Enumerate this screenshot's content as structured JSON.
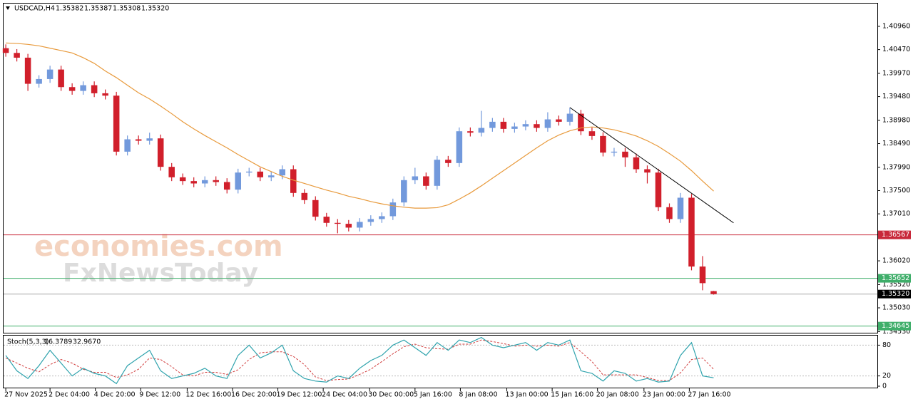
{
  "chart_data": {
    "type": "candlestick",
    "title": "USDCAD,H4",
    "quote": {
      "values": [
        1.35382,
        1.35387,
        1.35308,
        1.3532
      ],
      "value_labels": [
        "1.35382",
        "1.35387",
        "1.35308",
        "1.35320"
      ]
    },
    "xlim": [
      -0.2,
      78.8
    ],
    "x_ticks": [
      {
        "value": 0,
        "label": "27 Nov 2025"
      },
      {
        "value": 4,
        "label": "2 Dec 04:00"
      },
      {
        "value": 8.1,
        "label": "4 Dec 20:00"
      },
      {
        "value": 12.2,
        "label": "9 Dec 12:00"
      },
      {
        "value": 16.4,
        "label": "12 Dec 16:00"
      },
      {
        "value": 20.5,
        "label": "16 Dec 20:00"
      },
      {
        "value": 24.6,
        "label": "19 Dec 12:00"
      },
      {
        "value": 28.7,
        "label": "24 Dec 04:00"
      },
      {
        "value": 32.9,
        "label": "30 Dec 00:00"
      },
      {
        "value": 37,
        "label": "5 Jan 16:00"
      },
      {
        "value": 41.1,
        "label": "8 Jan 08:00"
      },
      {
        "value": 45.3,
        "label": "13 Jan 00:00"
      },
      {
        "value": 49.4,
        "label": "15 Jan 16:00"
      },
      {
        "value": 53.5,
        "label": "20 Jan 08:00"
      },
      {
        "value": 57.7,
        "label": "23 Jan 00:00"
      },
      {
        "value": 61.8,
        "label": "27 Jan 16:00"
      }
    ],
    "open": [
      1.405,
      1.404,
      1.403,
      1.3975,
      1.3985,
      1.4005,
      1.3968,
      1.396,
      1.3972,
      1.3955,
      1.395,
      1.3832,
      1.3858,
      1.3855,
      1.386,
      1.38,
      1.3778,
      1.377,
      1.3765,
      1.3772,
      1.3768,
      1.3752,
      1.3788,
      1.379,
      1.3778,
      1.3782,
      1.3795,
      1.3745,
      1.373,
      1.3695,
      1.3682,
      1.368,
      1.3672,
      1.3684,
      1.369,
      1.3696,
      1.3725,
      1.3772,
      1.378,
      1.376,
      1.3815,
      1.3808,
      1.3875,
      1.3872,
      1.3882,
      1.3895,
      1.388,
      1.3885,
      1.389,
      1.3882,
      1.39,
      1.3895,
      1.3912,
      1.3875,
      1.3865,
      1.383,
      1.3832,
      1.382,
      1.3795,
      1.3788,
      1.3715,
      1.369,
      1.3735,
      1.359,
      1.35382
    ],
    "high": [
      1.4058,
      1.4048,
      1.4038,
      1.3993,
      1.4013,
      1.4013,
      1.3976,
      1.398,
      1.398,
      1.3963,
      1.3958,
      1.3866,
      1.3866,
      1.3872,
      1.3868,
      1.3808,
      1.3786,
      1.3778,
      1.378,
      1.378,
      1.3776,
      1.3796,
      1.3798,
      1.3798,
      1.379,
      1.3803,
      1.3803,
      1.3753,
      1.3738,
      1.3703,
      1.369,
      1.3688,
      1.3692,
      1.3698,
      1.3704,
      1.3733,
      1.378,
      1.3798,
      1.3788,
      1.3823,
      1.3823,
      1.3883,
      1.3883,
      1.3918,
      1.3903,
      1.3903,
      1.3893,
      1.3898,
      1.3898,
      1.3915,
      1.3908,
      1.3925,
      1.392,
      1.3883,
      1.3873,
      1.384,
      1.384,
      1.3828,
      1.3803,
      1.3796,
      1.3723,
      1.3745,
      1.3743,
      1.3612,
      1.35387
    ],
    "low": [
      1.4032,
      1.4022,
      1.396,
      1.3967,
      1.3977,
      1.396,
      1.3952,
      1.3952,
      1.3947,
      1.3942,
      1.3824,
      1.3824,
      1.3847,
      1.3847,
      1.3792,
      1.377,
      1.3762,
      1.3757,
      1.3757,
      1.376,
      1.3744,
      1.3744,
      1.378,
      1.377,
      1.377,
      1.3774,
      1.3737,
      1.3722,
      1.3687,
      1.3674,
      1.366,
      1.3664,
      1.3664,
      1.3676,
      1.3682,
      1.3688,
      1.3717,
      1.3764,
      1.3752,
      1.3752,
      1.38,
      1.38,
      1.3864,
      1.3864,
      1.3874,
      1.3872,
      1.3872,
      1.3877,
      1.3874,
      1.3874,
      1.3887,
      1.3887,
      1.3867,
      1.3857,
      1.3822,
      1.3822,
      1.38,
      1.3787,
      1.3765,
      1.3707,
      1.3682,
      1.3682,
      1.3582,
      1.354,
      1.35308
    ],
    "close": [
      1.404,
      1.403,
      1.3975,
      1.3985,
      1.4005,
      1.3968,
      1.396,
      1.3972,
      1.3955,
      1.395,
      1.3832,
      1.3858,
      1.3855,
      1.386,
      1.38,
      1.3778,
      1.377,
      1.3765,
      1.3772,
      1.3768,
      1.3752,
      1.3788,
      1.379,
      1.3778,
      1.3782,
      1.3795,
      1.3745,
      1.373,
      1.3695,
      1.3682,
      1.368,
      1.3672,
      1.3684,
      1.369,
      1.3696,
      1.3725,
      1.3772,
      1.378,
      1.376,
      1.3815,
      1.3808,
      1.3875,
      1.3872,
      1.3882,
      1.3895,
      1.388,
      1.3885,
      1.389,
      1.3882,
      1.39,
      1.3895,
      1.3912,
      1.3875,
      1.3865,
      1.383,
      1.3832,
      1.382,
      1.3795,
      1.3788,
      1.3715,
      1.369,
      1.3735,
      1.359,
      1.3555,
      1.3532
    ],
    "colors": {
      "up": "#7299dc",
      "down": "#d11f2b"
    },
    "ylim": [
      1.3449,
      1.4144
    ],
    "yticks": [
      {
        "value": 1.4096,
        "label": "1.40960"
      },
      {
        "value": 1.4047,
        "label": "1.40470"
      },
      {
        "value": 1.3997,
        "label": "1.39970"
      },
      {
        "value": 1.3948,
        "label": "1.39480"
      },
      {
        "value": 1.3898,
        "label": "1.38980"
      },
      {
        "value": 1.3849,
        "label": "1.38490"
      },
      {
        "value": 1.3799,
        "label": "1.37990"
      },
      {
        "value": 1.375,
        "label": "1.37500"
      },
      {
        "value": 1.3701,
        "label": "1.37010"
      },
      {
        "value": 1.3652,
        "label": "1.36520"
      },
      {
        "value": 1.3602,
        "label": "1.36020"
      },
      {
        "value": 1.3552,
        "label": "1.35520"
      },
      {
        "value": 1.3503,
        "label": "1.35030"
      },
      {
        "value": 1.3453,
        "label": "1.34530"
      }
    ],
    "ma": {
      "color": "#e89a3c",
      "values": [
        1.4061,
        1.406,
        1.4058,
        1.4055,
        1.405,
        1.4045,
        1.404,
        1.403,
        1.4018,
        1.4002,
        1.3988,
        1.3972,
        1.3956,
        1.3943,
        1.3928,
        1.3912,
        1.3895,
        1.388,
        1.3866,
        1.3853,
        1.384,
        1.3826,
        1.3813,
        1.38,
        1.379,
        1.378,
        1.3772,
        1.3765,
        1.3758,
        1.3751,
        1.3745,
        1.3738,
        1.3733,
        1.3727,
        1.3722,
        1.3718,
        1.3715,
        1.3713,
        1.3713,
        1.3714,
        1.372,
        1.3732,
        1.3745,
        1.376,
        1.3776,
        1.3792,
        1.3808,
        1.3824,
        1.384,
        1.3855,
        1.3867,
        1.3876,
        1.3882,
        1.3884,
        1.3882,
        1.3878,
        1.3872,
        1.3865,
        1.3855,
        1.3843,
        1.3828,
        1.3812,
        1.3792,
        1.377,
        1.3749
      ]
    },
    "levels": [
      {
        "value": 1.36567,
        "label": "1.36567",
        "color": "#c8283a"
      },
      {
        "value": 1.35652,
        "label": "1.35652",
        "color": "#3fae6a"
      },
      {
        "value": 1.3532,
        "label": "1.35320",
        "color": "#000000"
      },
      {
        "value": 1.34645,
        "label": "1.34645",
        "color": "#3fae6a"
      }
    ],
    "trendline": {
      "color": "#000000",
      "x": [
        51,
        65.8
      ],
      "y": [
        1.3925,
        1.3682
      ]
    },
    "stoch": {
      "name": "Stoch(5,3,3)",
      "readout": {
        "values": [
          16.3789,
          32.967
        ],
        "value_labels": [
          "16.3789",
          "32.9670"
        ]
      },
      "color_k": "#2fa3ad",
      "color_d": "#d03a3a",
      "ylim": [
        0,
        100
      ],
      "yticks": [
        0,
        20,
        80
      ],
      "k": [
        60,
        30,
        15,
        40,
        70,
        45,
        20,
        35,
        25,
        20,
        5,
        40,
        55,
        70,
        30,
        15,
        20,
        25,
        35,
        20,
        15,
        60,
        80,
        55,
        65,
        80,
        30,
        15,
        10,
        8,
        20,
        15,
        35,
        50,
        60,
        80,
        90,
        75,
        60,
        85,
        70,
        90,
        85,
        95,
        80,
        75,
        80,
        85,
        70,
        85,
        80,
        90,
        30,
        25,
        10,
        30,
        25,
        10,
        15,
        8,
        10,
        60,
        85,
        20,
        16.3789
      ],
      "d": [
        55,
        45,
        35,
        28,
        42,
        52,
        45,
        33,
        27,
        27,
        17,
        22,
        33,
        55,
        52,
        38,
        22,
        20,
        27,
        27,
        23,
        32,
        52,
        65,
        67,
        67,
        58,
        42,
        18,
        11,
        13,
        14,
        23,
        33,
        48,
        63,
        77,
        82,
        75,
        73,
        72,
        82,
        82,
        90,
        87,
        83,
        78,
        80,
        78,
        80,
        78,
        85,
        67,
        48,
        22,
        22,
        22,
        22,
        17,
        11,
        11,
        26,
        52,
        55,
        32.967
      ]
    },
    "watermark": [
      "economies.com",
      "FxNewsToday"
    ]
  }
}
